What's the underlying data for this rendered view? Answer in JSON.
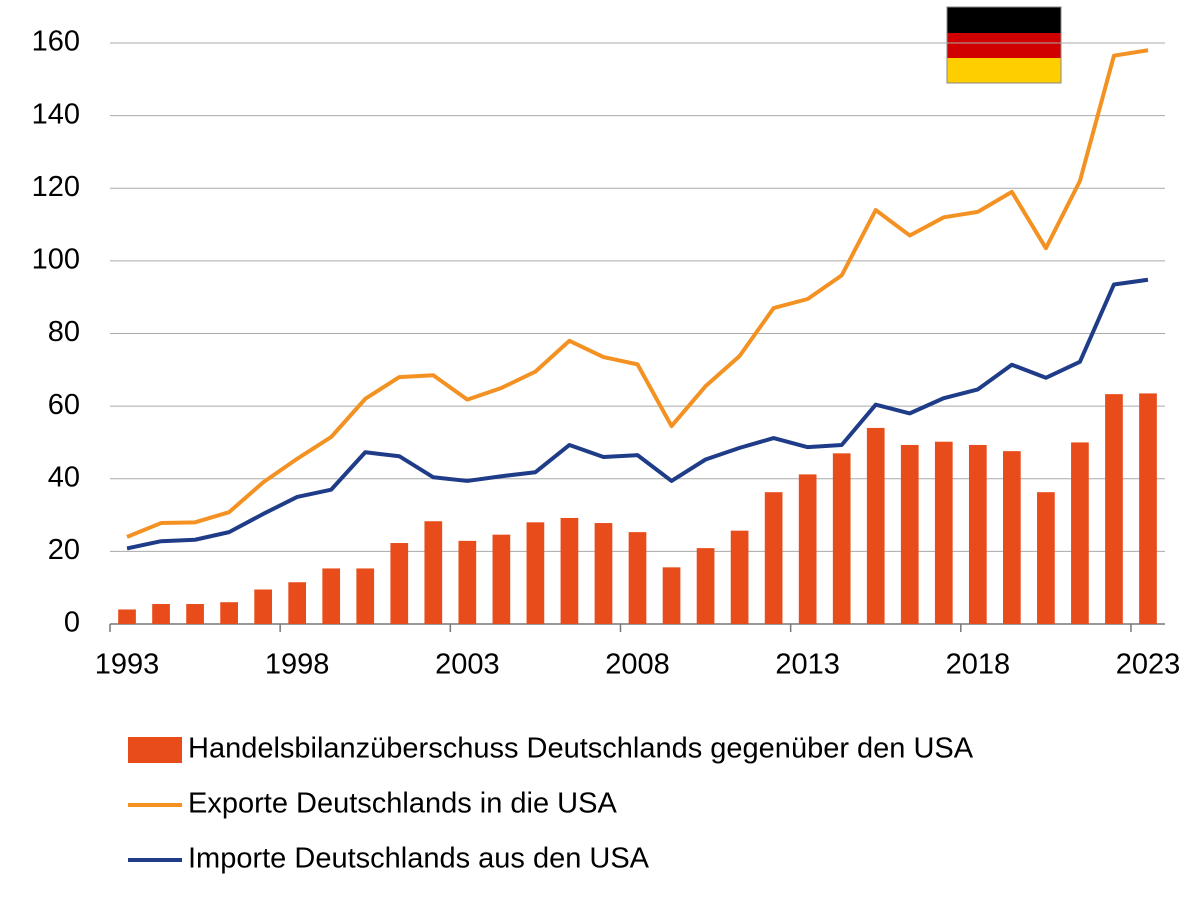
{
  "chart_data": {
    "type": "bar-line",
    "categories": [
      "1993",
      null,
      null,
      null,
      null,
      "1998",
      null,
      null,
      null,
      null,
      "2003",
      null,
      null,
      null,
      null,
      "2008",
      null,
      null,
      null,
      null,
      "2013",
      null,
      null,
      null,
      null,
      "2018",
      null,
      null,
      null,
      null,
      "2023"
    ],
    "series": [
      {
        "name": "Handelsbilanzüberschuss Deutschlands gegenüber den USA",
        "type": "bar",
        "color": "#e84c1a",
        "values": [
          4,
          5.5,
          5.5,
          6,
          9.5,
          11.5,
          15.3,
          15.3,
          22.3,
          28.3,
          22.9,
          24.6,
          28,
          29.2,
          27.8,
          25.3,
          15.6,
          20.9,
          25.7,
          36.3,
          41.2,
          47,
          54,
          49.3,
          50.2,
          49.3,
          47.6,
          36.3,
          50,
          63.3,
          63.5
        ]
      },
      {
        "name": "Exporte Deutschlands in die USA",
        "type": "line",
        "color": "#f39222",
        "values": [
          24,
          27.8,
          28,
          30.8,
          39,
          45.5,
          51.5,
          62,
          68,
          68.5,
          61.8,
          65,
          69.5,
          78,
          73.5,
          71.5,
          54.5,
          65.5,
          73.8,
          87,
          89.5,
          96,
          114,
          107,
          112,
          113.5,
          119,
          103.5,
          122,
          156.5,
          158
        ]
      },
      {
        "name": "Importe Deutschlands aus den USA",
        "type": "line",
        "color": "#1f3c88",
        "values": [
          20.8,
          22.8,
          23.2,
          25.3,
          30.3,
          35,
          37,
          47.3,
          46.2,
          40.4,
          39.4,
          40.7,
          41.8,
          49.3,
          46,
          46.5,
          39.4,
          45.3,
          48.5,
          51.2,
          48.7,
          49.3,
          60.4,
          58,
          62.2,
          64.6,
          71.4,
          67.8,
          72.2,
          93.5,
          94.8
        ]
      }
    ],
    "ylim": [
      0,
      160
    ],
    "yticks": [
      0,
      20,
      40,
      60,
      80,
      100,
      120,
      140,
      160
    ],
    "grid": true,
    "legend": "bottom"
  }
}
